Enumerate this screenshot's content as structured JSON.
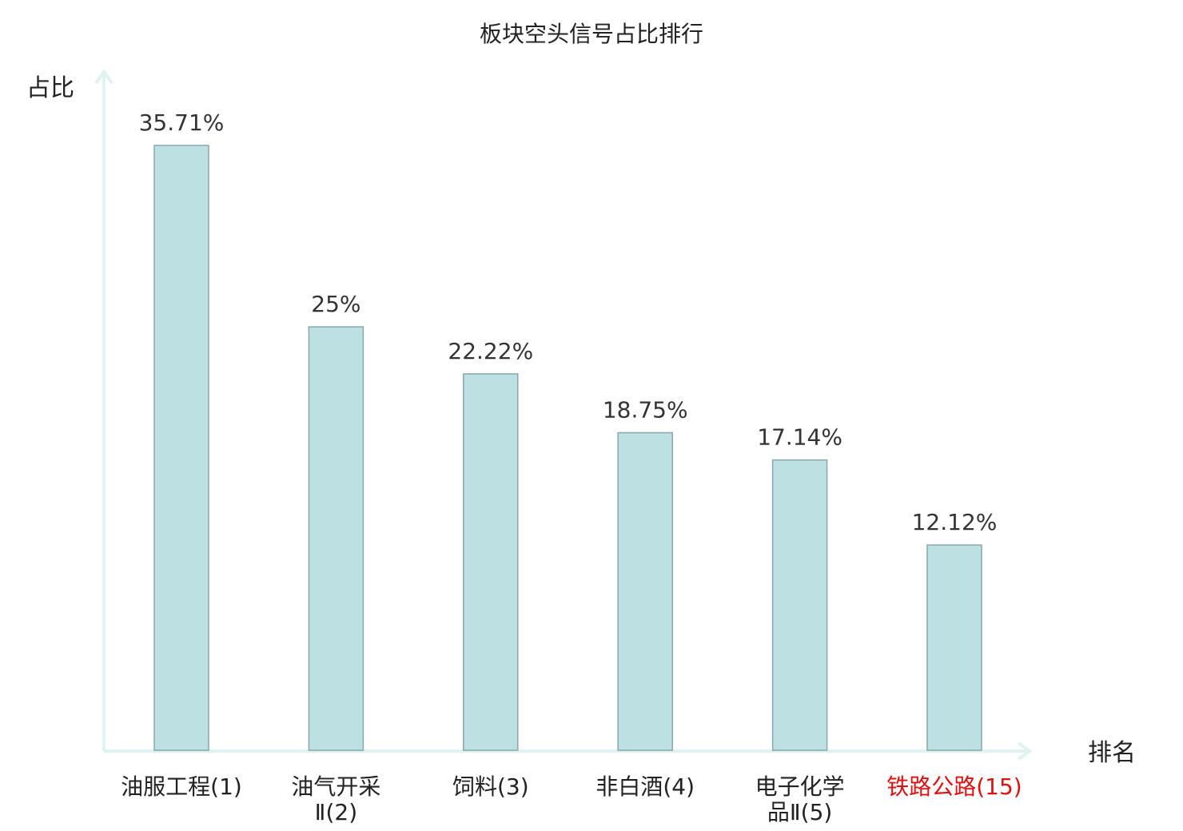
{
  "chart_data": {
    "type": "bar",
    "title": "板块空头信号占比排行",
    "xlabel": "排名",
    "ylabel": "占比",
    "categories": [
      {
        "name": "油服工程",
        "rank": "(1)",
        "lines": [
          "油服工程(1)"
        ],
        "highlight": false
      },
      {
        "name": "油气开采Ⅱ",
        "rank": "(2)",
        "lines": [
          "油气开采",
          "Ⅱ(2)"
        ],
        "highlight": false
      },
      {
        "name": "饲料",
        "rank": "(3)",
        "lines": [
          "饲料(3)"
        ],
        "highlight": false
      },
      {
        "name": "非白酒",
        "rank": "(4)",
        "lines": [
          "非白酒(4)"
        ],
        "highlight": false
      },
      {
        "name": "电子化学品Ⅱ",
        "rank": "(5)",
        "lines": [
          "电子化学",
          "品Ⅱ(5)"
        ],
        "highlight": false
      },
      {
        "name": "铁路公路",
        "rank": "(15)",
        "lines": [
          "铁路公路(15)"
        ],
        "highlight": true
      }
    ],
    "values": [
      35.71,
      25,
      22.22,
      18.75,
      17.14,
      12.12
    ],
    "value_labels": [
      "35.71%",
      "25%",
      "22.22%",
      "18.75%",
      "17.14%",
      "12.12%"
    ],
    "ylim": [
      0,
      36
    ],
    "grid": false,
    "legend": "none"
  },
  "colors": {
    "bar_fill": "#bde0e2",
    "bar_stroke": "#8aa7aa",
    "axis": "#dff2ef",
    "text": "#222222",
    "highlight": "#e01010"
  }
}
